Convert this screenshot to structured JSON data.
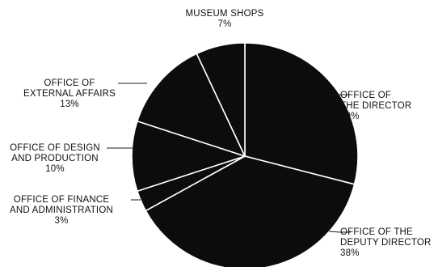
{
  "chart_data": {
    "type": "pie",
    "slices": [
      {
        "label_lines": [
          "OFFICE OF",
          "THE DIRECTOR"
        ],
        "pct_label": "29%",
        "value": 29
      },
      {
        "label_lines": [
          "OFFICE OF THE",
          "DEPUTY DIRECTOR"
        ],
        "pct_label": "38%",
        "value": 38
      },
      {
        "label_lines": [
          "OFFICE OF FINANCE",
          "AND ADMINISTRATION"
        ],
        "pct_label": "3%",
        "value": 3
      },
      {
        "label_lines": [
          "OFFICE OF DESIGN",
          "AND PRODUCTION"
        ],
        "pct_label": "10%",
        "value": 10
      },
      {
        "label_lines": [
          "OFFICE OF",
          "EXTERNAL AFFAIRS"
        ],
        "pct_label": "13%",
        "value": 13
      },
      {
        "label_lines": [
          "MUSEUM SHOPS"
        ],
        "pct_label": "7%",
        "value": 7
      }
    ],
    "slice_color": "#0c0c0c",
    "separator_color": "#ffffff",
    "start": "12 o'clock",
    "direction": "clockwise",
    "legend": "none"
  }
}
